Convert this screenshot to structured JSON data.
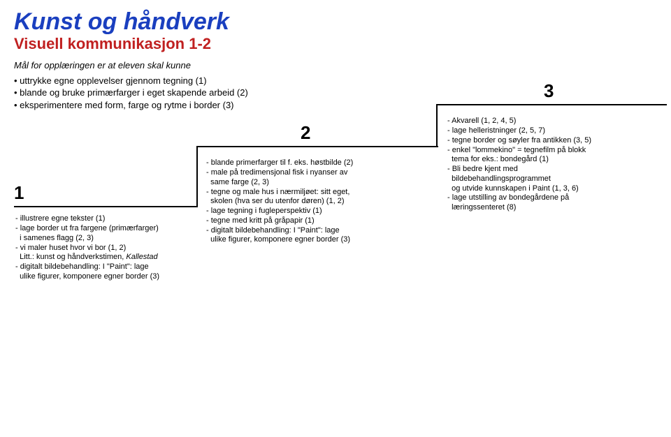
{
  "title": {
    "text": "Kunst og håndverk",
    "color": "#1a3fbf",
    "fontsize": 34
  },
  "subtitle": {
    "text": "Visuell kommunikasjon 1-2",
    "color": "#c02020",
    "fontsize": 22
  },
  "intro": {
    "text": "Mål for opplæringen er at eleven skal kunne",
    "fontsize": 13
  },
  "bullets": [
    "uttrykke egne opplevelser gjennom tegning (1)",
    "blande og bruke primærfarger i eget skapende arbeid (2)",
    "eksperimentere med form, farge og rytme i border (3)"
  ],
  "step1": {
    "num": "1",
    "lines": [
      "- illustrere egne tekster (1)",
      "- lage border ut fra fargene (primærfarger)",
      "  i samenes flagg (2, 3)",
      "- vi maler huset hvor vi bor (1, 2)",
      "  Litt.: kunst og håndverkstimen, <i>Kallestad</i>",
      "- digitalt bildebehandling: I \"Paint\": lage",
      "  ulike figurer, komponere egner border (3)"
    ]
  },
  "step2": {
    "num": "2",
    "lines": [
      "- blande primerfarger til f. eks. høstbilde (2)",
      "- male på tredimensjonal fisk i nyanser av",
      "  same farge (2, 3)",
      "- tegne og male hus i nærmiljøet: sitt eget,",
      "  skolen (hva ser du utenfor døren) (1, 2)",
      "- lage tegning i fugleperspektiv (1)",
      "- tegne med kritt på gråpapir (1)",
      "- digitalt bildebehandling: I \"Paint\": lage",
      "  ulike figurer, komponere egner border (3)"
    ]
  },
  "step3": {
    "num": "3",
    "lines": [
      "- Akvarell (1, 2, 4, 5)",
      "- lage helleristninger (2, 5, 7)",
      "- tegne border og søyler fra antikken (3, 5)",
      "- enkel \"lommekino\" = tegnefilm på blokk",
      "  tema for eks.: bondegård (1)",
      "- Bli bedre kjent med",
      "  bildebehandlingsprogrammet",
      "  og utvide kunnskapen i Paint (1, 3, 6)",
      "- lage utstilling av bondegårdene på",
      "  læringssenteret (8)"
    ]
  }
}
